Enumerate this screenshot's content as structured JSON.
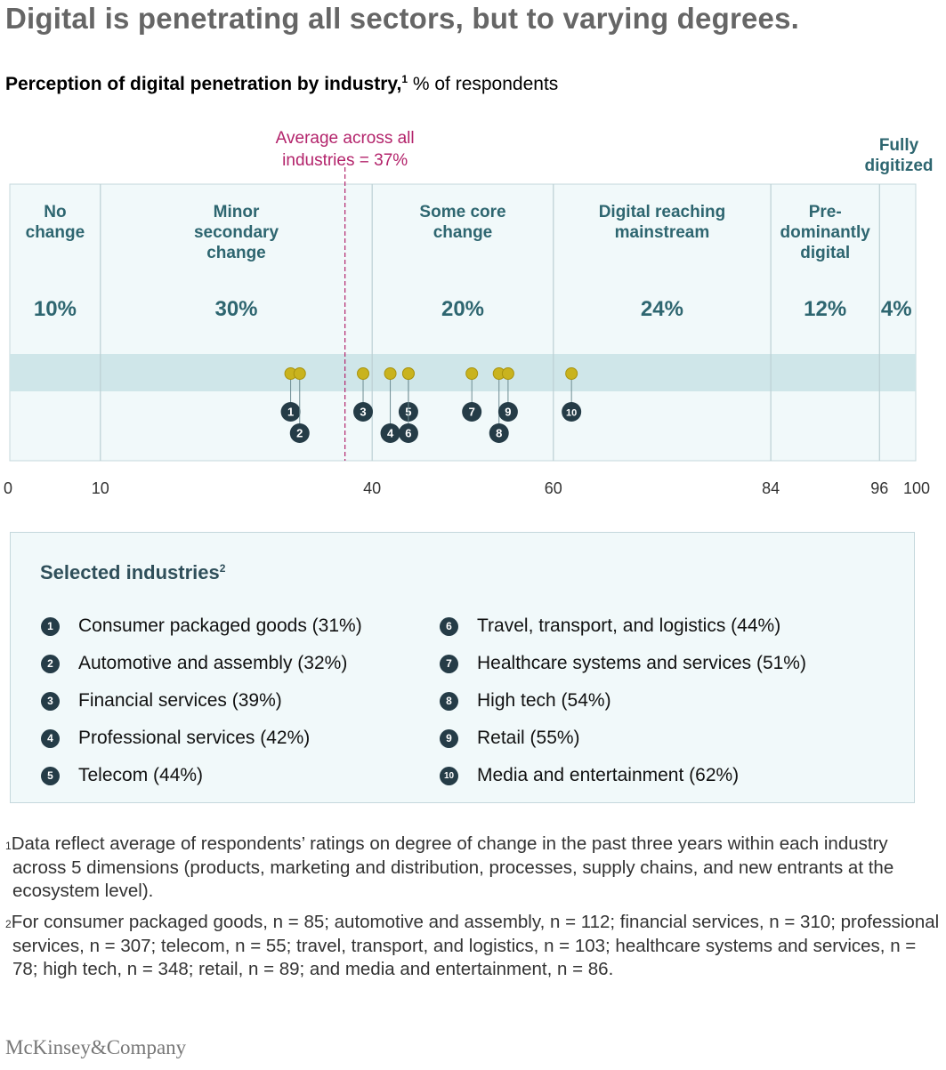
{
  "headline": "Digital is penetrating all sectors, but to varying degrees.",
  "subtitle": {
    "bold": "Perception of digital penetration by industry,",
    "footnote_mark": "1",
    "rest": " % of respondents"
  },
  "colors": {
    "teal_text": "#2e6670",
    "avg_line": "#b3236b",
    "band": "#cfe6e9",
    "region_bg": "#f1f9fa",
    "dot": "#c9b31e",
    "badge": "#253c47"
  },
  "chart_data": {
    "type": "scatter",
    "title": "Perception of digital penetration by industry",
    "unit": "% of respondents",
    "xlim": [
      0,
      100
    ],
    "x_ticks": [
      0,
      10,
      40,
      60,
      84,
      96,
      100
    ],
    "average": {
      "value": 37,
      "label_line1": "Average across all",
      "label_line2": "industries = 37%"
    },
    "segments": [
      {
        "label_lines": [
          "No",
          "change"
        ],
        "start": 0,
        "end": 10,
        "share": "10%"
      },
      {
        "label_lines": [
          "Minor",
          "secondary",
          "change"
        ],
        "start": 10,
        "end": 40,
        "share": "30%"
      },
      {
        "label_lines": [
          "Some core",
          "change"
        ],
        "start": 40,
        "end": 60,
        "share": "20%"
      },
      {
        "label_lines": [
          "Digital reaching",
          "mainstream"
        ],
        "start": 60,
        "end": 84,
        "share": "24%"
      },
      {
        "label_lines": [
          "Pre-",
          "dominantly",
          "digital"
        ],
        "start": 84,
        "end": 96,
        "share": "12%"
      },
      {
        "label_lines": [
          "Fully",
          "digitized"
        ],
        "start": 96,
        "end": 100,
        "share": "4%"
      }
    ],
    "points": [
      {
        "id": "1",
        "x": 31,
        "row": 1
      },
      {
        "id": "2",
        "x": 32,
        "row": 2
      },
      {
        "id": "3",
        "x": 39,
        "row": 1
      },
      {
        "id": "4",
        "x": 42,
        "row": 2
      },
      {
        "id": "5",
        "x": 44,
        "row": 1
      },
      {
        "id": "6",
        "x": 44,
        "row": 2
      },
      {
        "id": "7",
        "x": 51,
        "row": 1
      },
      {
        "id": "8",
        "x": 54,
        "row": 2
      },
      {
        "id": "9",
        "x": 55,
        "row": 1
      },
      {
        "id": "10",
        "x": 62,
        "row": 1
      }
    ]
  },
  "legend": {
    "title": "Selected industries",
    "title_mark": "2",
    "left": [
      {
        "num": "1",
        "label": "Consumer packaged goods  (31%)"
      },
      {
        "num": "2",
        "label": "Automotive and assembly (32%)"
      },
      {
        "num": "3",
        "label": "Financial services (39%)"
      },
      {
        "num": "4",
        "label": "Professional services (42%)"
      },
      {
        "num": "5",
        "label": "Telecom (44%)"
      }
    ],
    "right": [
      {
        "num": "6",
        "label": "Travel, transport, and logistics (44%)"
      },
      {
        "num": "7",
        "label": "Healthcare systems and services (51%)"
      },
      {
        "num": "8",
        "label": "High tech (54%)"
      },
      {
        "num": "9",
        "label": "Retail (55%)"
      },
      {
        "num": "10",
        "label": "Media and entertainment (62%)"
      }
    ]
  },
  "footnotes": [
    {
      "mark": "1",
      "text": "Data reflect average of respondents’ ratings on degree of change in the past three years within each industry across 5 dimensions (products, marketing and distribution, processes, supply chains, and new entrants at the ecosystem level)."
    },
    {
      "mark": "2",
      "text": "For consumer packaged goods, n = 85; automotive and assembly, n = 112; financial services, n = 310; professional services, n = 307; telecom, n = 55; travel, transport, and logistics, n = 103; healthcare systems and services, n = 78; high tech, n = 348; retail, n = 89; and media and entertainment, n = 86."
    }
  ],
  "logo": "McKinsey&Company"
}
